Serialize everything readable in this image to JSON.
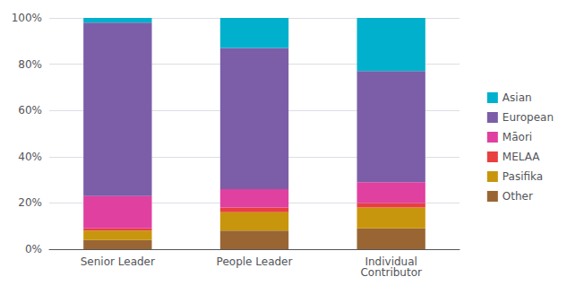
{
  "chart_data": {
    "type": "bar",
    "stacked": true,
    "categories": [
      "Senior Leader",
      "People Leader",
      "Individual\nContributor"
    ],
    "series": [
      {
        "name": "Other",
        "color": "#996633",
        "values": [
          4,
          8,
          9
        ]
      },
      {
        "name": "Pasifika",
        "color": "#C8960C",
        "values": [
          4,
          8,
          9
        ]
      },
      {
        "name": "MELAA",
        "color": "#E84040",
        "values": [
          1,
          2,
          2
        ]
      },
      {
        "name": "Māori",
        "color": "#E040A0",
        "values": [
          14,
          8,
          9
        ]
      },
      {
        "name": "European",
        "color": "#7B5EA7",
        "values": [
          75,
          61,
          48
        ]
      },
      {
        "name": "Asian",
        "color": "#00B0CC",
        "values": [
          2,
          13,
          23
        ]
      }
    ],
    "ylim": [
      0,
      100
    ],
    "yticks": [
      {
        "value": 0,
        "label": "0%"
      },
      {
        "value": 20,
        "label": "20%"
      },
      {
        "value": 40,
        "label": "40%"
      },
      {
        "value": 60,
        "label": "60%"
      },
      {
        "value": 80,
        "label": "80%"
      },
      {
        "value": 100,
        "label": "100%"
      }
    ],
    "grid": true,
    "legend": "right"
  }
}
